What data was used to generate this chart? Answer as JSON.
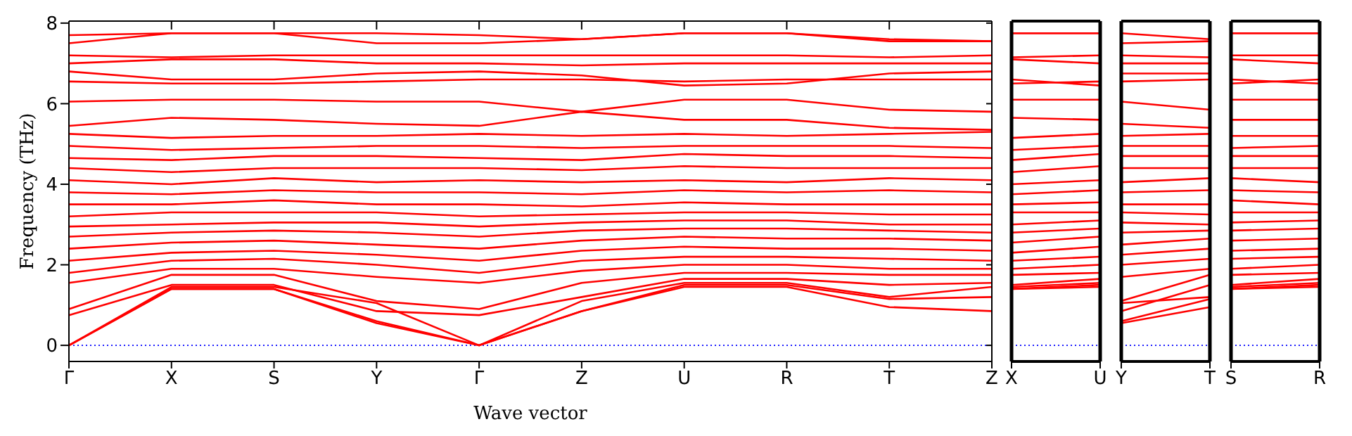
{
  "chart_data": [
    {
      "type": "line",
      "xlabel": "Wave vector",
      "ylabel": "Frequency (THz)",
      "color": "#ff0000",
      "categories": [
        "Γ",
        "X",
        "S",
        "Y",
        "Γ",
        "Z",
        "U",
        "R",
        "T",
        "Z"
      ],
      "ylim": [
        -0.4,
        8.05
      ],
      "yticks": [
        0,
        2,
        4,
        6,
        8
      ],
      "ref_lines": [
        {
          "axis": "y",
          "value": 0,
          "color": "#0000ff",
          "line_style": "dotted"
        }
      ],
      "series": [
        {
          "values": [
            0,
            1.4,
            1.4,
            0.55,
            0,
            0.85,
            1.45,
            1.45,
            0.95,
            0.85
          ]
        },
        {
          "values": [
            0,
            1.4,
            1.4,
            0.6,
            0,
            0.85,
            1.5,
            1.5,
            1.15,
            1.2
          ]
        },
        {
          "values": [
            0,
            1.45,
            1.45,
            1.05,
            0,
            1.1,
            1.55,
            1.55,
            1.2,
            1.45
          ]
        },
        {
          "values": [
            0.75,
            1.5,
            1.5,
            0.85,
            0.75,
            1.2,
            1.65,
            1.65,
            1.5,
            1.55
          ]
        },
        {
          "values": [
            0.9,
            1.75,
            1.75,
            1.1,
            0.9,
            1.55,
            1.8,
            1.8,
            1.75,
            1.75
          ]
        },
        {
          "values": [
            1.55,
            1.9,
            1.9,
            1.7,
            1.55,
            1.85,
            2.0,
            2.0,
            1.9,
            1.9
          ]
        },
        {
          "values": [
            1.8,
            2.1,
            2.15,
            2.0,
            1.8,
            2.1,
            2.2,
            2.2,
            2.15,
            2.1
          ]
        },
        {
          "values": [
            2.1,
            2.3,
            2.35,
            2.25,
            2.1,
            2.35,
            2.45,
            2.4,
            2.4,
            2.35
          ]
        },
        {
          "values": [
            2.4,
            2.55,
            2.6,
            2.5,
            2.4,
            2.6,
            2.7,
            2.65,
            2.65,
            2.6
          ]
        },
        {
          "values": [
            2.7,
            2.8,
            2.85,
            2.8,
            2.7,
            2.85,
            2.9,
            2.9,
            2.85,
            2.8
          ]
        },
        {
          "values": [
            2.95,
            3.0,
            3.05,
            3.05,
            2.95,
            3.05,
            3.1,
            3.1,
            3.0,
            3.0
          ]
        },
        {
          "values": [
            3.2,
            3.3,
            3.3,
            3.3,
            3.2,
            3.25,
            3.3,
            3.3,
            3.25,
            3.25
          ]
        },
        {
          "values": [
            3.5,
            3.5,
            3.6,
            3.5,
            3.5,
            3.45,
            3.55,
            3.5,
            3.5,
            3.5
          ]
        },
        {
          "values": [
            3.8,
            3.75,
            3.85,
            3.8,
            3.8,
            3.75,
            3.85,
            3.8,
            3.85,
            3.8
          ]
        },
        {
          "values": [
            4.1,
            4.0,
            4.15,
            4.05,
            4.1,
            4.05,
            4.1,
            4.05,
            4.15,
            4.1
          ]
        },
        {
          "values": [
            4.4,
            4.3,
            4.4,
            4.4,
            4.4,
            4.35,
            4.45,
            4.4,
            4.4,
            4.4
          ]
        },
        {
          "values": [
            4.65,
            4.6,
            4.7,
            4.7,
            4.65,
            4.6,
            4.75,
            4.7,
            4.7,
            4.65
          ]
        },
        {
          "values": [
            4.95,
            4.85,
            4.9,
            4.95,
            4.95,
            4.9,
            4.95,
            4.95,
            4.95,
            4.9
          ]
        },
        {
          "values": [
            5.25,
            5.15,
            5.2,
            5.2,
            5.25,
            5.2,
            5.25,
            5.2,
            5.25,
            5.3
          ]
        },
        {
          "values": [
            5.45,
            5.65,
            5.6,
            5.5,
            5.45,
            5.8,
            5.6,
            5.6,
            5.4,
            5.35
          ]
        },
        {
          "values": [
            6.05,
            6.1,
            6.1,
            6.05,
            6.05,
            5.8,
            6.1,
            6.1,
            5.85,
            5.8
          ]
        },
        {
          "values": [
            6.55,
            6.5,
            6.5,
            6.55,
            6.6,
            6.6,
            6.55,
            6.6,
            6.6,
            6.6
          ]
        },
        {
          "values": [
            6.8,
            6.6,
            6.6,
            6.75,
            6.8,
            6.7,
            6.45,
            6.5,
            6.75,
            6.8
          ]
        },
        {
          "values": [
            7.0,
            7.1,
            7.1,
            7.0,
            7.0,
            6.95,
            7.0,
            7.0,
            7.0,
            7.0
          ]
        },
        {
          "values": [
            7.2,
            7.15,
            7.2,
            7.2,
            7.2,
            7.2,
            7.2,
            7.2,
            7.15,
            7.2
          ]
        },
        {
          "values": [
            7.5,
            7.75,
            7.75,
            7.5,
            7.5,
            7.6,
            7.75,
            7.75,
            7.55,
            7.55
          ]
        },
        {
          "values": [
            7.7,
            7.75,
            7.75,
            7.75,
            7.7,
            7.6,
            7.75,
            7.75,
            7.6,
            7.55
          ]
        }
      ]
    },
    {
      "type": "line",
      "color": "#ff0000",
      "tick_labels": "x",
      "categories": [
        "X",
        "U"
      ],
      "ylim": [
        -0.4,
        8.05
      ],
      "ref_lines": [
        {
          "axis": "y",
          "value": 0,
          "color": "#0000ff",
          "line_style": "dotted"
        }
      ],
      "series": [
        {
          "values": [
            1.4,
            1.45
          ]
        },
        {
          "values": [
            1.4,
            1.5
          ]
        },
        {
          "values": [
            1.45,
            1.55
          ]
        },
        {
          "values": [
            1.5,
            1.65
          ]
        },
        {
          "values": [
            1.75,
            1.8
          ]
        },
        {
          "values": [
            1.9,
            2.0
          ]
        },
        {
          "values": [
            2.1,
            2.2
          ]
        },
        {
          "values": [
            2.3,
            2.45
          ]
        },
        {
          "values": [
            2.55,
            2.7
          ]
        },
        {
          "values": [
            2.8,
            2.9
          ]
        },
        {
          "values": [
            3.0,
            3.1
          ]
        },
        {
          "values": [
            3.3,
            3.3
          ]
        },
        {
          "values": [
            3.5,
            3.55
          ]
        },
        {
          "values": [
            3.75,
            3.85
          ]
        },
        {
          "values": [
            4.0,
            4.1
          ]
        },
        {
          "values": [
            4.3,
            4.45
          ]
        },
        {
          "values": [
            4.6,
            4.75
          ]
        },
        {
          "values": [
            4.85,
            4.95
          ]
        },
        {
          "values": [
            5.15,
            5.25
          ]
        },
        {
          "values": [
            5.65,
            5.6
          ]
        },
        {
          "values": [
            6.1,
            6.1
          ]
        },
        {
          "values": [
            6.5,
            6.55
          ]
        },
        {
          "values": [
            6.6,
            6.45
          ]
        },
        {
          "values": [
            7.1,
            7.0
          ]
        },
        {
          "values": [
            7.15,
            7.2
          ]
        },
        {
          "values": [
            7.75,
            7.75
          ]
        },
        {
          "values": [
            7.75,
            7.75
          ]
        }
      ]
    },
    {
      "type": "line",
      "color": "#ff0000",
      "tick_labels": "x",
      "categories": [
        "Y",
        "T"
      ],
      "ylim": [
        -0.4,
        8.05
      ],
      "ref_lines": [
        {
          "axis": "y",
          "value": 0,
          "color": "#0000ff",
          "line_style": "dotted"
        }
      ],
      "series": [
        {
          "values": [
            0.55,
            0.95
          ]
        },
        {
          "values": [
            0.6,
            1.15
          ]
        },
        {
          "values": [
            1.05,
            1.2
          ]
        },
        {
          "values": [
            0.85,
            1.5
          ]
        },
        {
          "values": [
            1.1,
            1.75
          ]
        },
        {
          "values": [
            1.7,
            1.9
          ]
        },
        {
          "values": [
            2.0,
            2.15
          ]
        },
        {
          "values": [
            2.25,
            2.4
          ]
        },
        {
          "values": [
            2.5,
            2.65
          ]
        },
        {
          "values": [
            2.8,
            2.85
          ]
        },
        {
          "values": [
            3.05,
            3.0
          ]
        },
        {
          "values": [
            3.3,
            3.25
          ]
        },
        {
          "values": [
            3.5,
            3.5
          ]
        },
        {
          "values": [
            3.8,
            3.85
          ]
        },
        {
          "values": [
            4.05,
            4.15
          ]
        },
        {
          "values": [
            4.4,
            4.4
          ]
        },
        {
          "values": [
            4.7,
            4.7
          ]
        },
        {
          "values": [
            4.95,
            4.95
          ]
        },
        {
          "values": [
            5.2,
            5.25
          ]
        },
        {
          "values": [
            5.5,
            5.4
          ]
        },
        {
          "values": [
            6.05,
            5.85
          ]
        },
        {
          "values": [
            6.55,
            6.6
          ]
        },
        {
          "values": [
            6.75,
            6.75
          ]
        },
        {
          "values": [
            7.0,
            7.0
          ]
        },
        {
          "values": [
            7.2,
            7.15
          ]
        },
        {
          "values": [
            7.5,
            7.55
          ]
        },
        {
          "values": [
            7.75,
            7.6
          ]
        }
      ]
    },
    {
      "type": "line",
      "color": "#ff0000",
      "tick_labels": "x",
      "categories": [
        "S",
        "R"
      ],
      "ylim": [
        -0.4,
        8.05
      ],
      "ref_lines": [
        {
          "axis": "y",
          "value": 0,
          "color": "#0000ff",
          "line_style": "dotted"
        }
      ],
      "series": [
        {
          "values": [
            1.4,
            1.45
          ]
        },
        {
          "values": [
            1.4,
            1.5
          ]
        },
        {
          "values": [
            1.45,
            1.55
          ]
        },
        {
          "values": [
            1.5,
            1.65
          ]
        },
        {
          "values": [
            1.75,
            1.8
          ]
        },
        {
          "values": [
            1.9,
            2.0
          ]
        },
        {
          "values": [
            2.15,
            2.2
          ]
        },
        {
          "values": [
            2.35,
            2.4
          ]
        },
        {
          "values": [
            2.6,
            2.65
          ]
        },
        {
          "values": [
            2.85,
            2.9
          ]
        },
        {
          "values": [
            3.05,
            3.1
          ]
        },
        {
          "values": [
            3.3,
            3.3
          ]
        },
        {
          "values": [
            3.6,
            3.5
          ]
        },
        {
          "values": [
            3.85,
            3.8
          ]
        },
        {
          "values": [
            4.15,
            4.05
          ]
        },
        {
          "values": [
            4.4,
            4.4
          ]
        },
        {
          "values": [
            4.7,
            4.7
          ]
        },
        {
          "values": [
            4.9,
            4.95
          ]
        },
        {
          "values": [
            5.2,
            5.2
          ]
        },
        {
          "values": [
            5.6,
            5.6
          ]
        },
        {
          "values": [
            6.1,
            6.1
          ]
        },
        {
          "values": [
            6.5,
            6.6
          ]
        },
        {
          "values": [
            6.6,
            6.5
          ]
        },
        {
          "values": [
            7.1,
            7.0
          ]
        },
        {
          "values": [
            7.2,
            7.2
          ]
        },
        {
          "values": [
            7.75,
            7.75
          ]
        },
        {
          "values": [
            7.75,
            7.75
          ]
        }
      ]
    }
  ]
}
